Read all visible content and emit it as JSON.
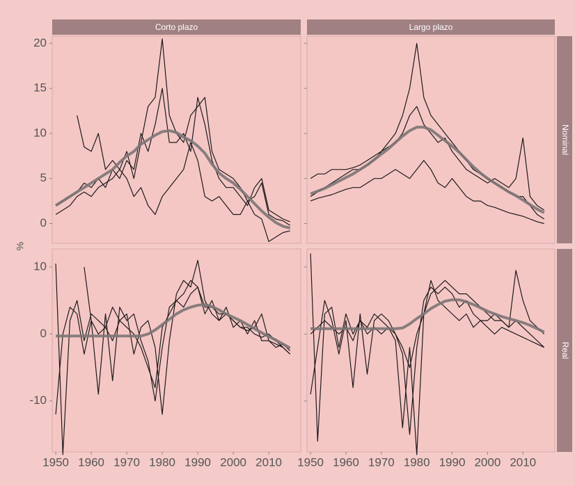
{
  "chart_data": {
    "type": "line",
    "ylabel": "%",
    "columns": [
      "Corto plazo",
      "Largo plazo"
    ],
    "rows": [
      "Nominal",
      "Real"
    ],
    "x": [
      1950,
      1952,
      1954,
      1956,
      1958,
      1960,
      1962,
      1964,
      1966,
      1968,
      1970,
      1972,
      1974,
      1976,
      1978,
      1980,
      1982,
      1984,
      1986,
      1988,
      1990,
      1992,
      1994,
      1996,
      1998,
      2000,
      2002,
      2004,
      2006,
      2008,
      2010,
      2012,
      2014,
      2016
    ],
    "xlim": [
      1949,
      2019
    ],
    "xticks": [
      1950,
      1960,
      1970,
      1980,
      1990,
      2000,
      2010
    ],
    "panels": [
      [
        {
          "ylim": [
            -2.2,
            20.8
          ],
          "yticks": [
            0,
            5,
            10,
            15,
            20
          ],
          "series": [
            {
              "color": "#1e1a1b",
              "values": [
                1,
                1.5,
                2,
                3,
                3.5,
                3,
                4,
                4.5,
                5,
                6,
                8,
                5,
                9,
                13,
                14,
                20.5,
                12,
                10,
                9,
                12,
                13,
                14,
                8,
                6,
                5.5,
                5,
                4,
                2.5,
                3,
                4.5,
                1,
                0.5,
                0.3,
                -0.2
              ]
            },
            {
              "color": "#1e1a1b",
              "values": [
                2,
                2.5,
                3,
                3.5,
                4.5,
                4,
                5,
                4,
                6,
                5,
                7,
                6,
                10,
                8,
                11,
                15,
                9,
                9,
                10,
                8,
                14,
                11,
                7,
                5,
                4,
                4,
                3,
                2,
                4,
                5,
                1.5,
                1,
                0.5,
                0.2
              ]
            },
            {
              "color": "#1e1a1b",
              "values": [
                null,
                null,
                null,
                12,
                8.5,
                8,
                10,
                6,
                7,
                6,
                5,
                3,
                4,
                2,
                1,
                3,
                4,
                5,
                6,
                9,
                7,
                3,
                2.5,
                3,
                2,
                1,
                1,
                2.5,
                1,
                0.5,
                -2,
                -1.5,
                -1,
                -0.8
              ]
            },
            {
              "color": "#7d7475",
              "values": [
                2,
                2.5,
                3,
                3.5,
                4,
                4.5,
                5,
                5.5,
                6,
                6.8,
                7.5,
                8,
                8.8,
                9.3,
                9.8,
                10.2,
                10.3,
                10.1,
                9.6,
                9.2,
                8.6,
                7.8,
                6.6,
                5.6,
                5,
                4.5,
                3.8,
                3,
                2.2,
                1.4,
                0.7,
                0.1,
                -0.3,
                -0.5
              ]
            }
          ]
        },
        {
          "ylim": [
            -2.2,
            20.8
          ],
          "yticks": [
            0,
            5,
            10,
            15,
            20
          ],
          "series": [
            {
              "color": "#1e1a1b",
              "values": [
                3,
                3.5,
                4,
                4.5,
                5,
                5.5,
                6,
                6,
                6.5,
                7,
                8,
                9,
                10,
                12,
                15,
                20,
                14,
                12,
                11,
                10,
                9,
                8,
                7,
                6,
                5.5,
                5,
                4.5,
                4,
                3.5,
                3,
                3,
                2,
                1,
                0.5
              ]
            },
            {
              "color": "#1e1a1b",
              "values": [
                5,
                5.5,
                5.5,
                6,
                6,
                6,
                6.2,
                6.5,
                7,
                7.5,
                8,
                8.5,
                9,
                10,
                12,
                13,
                11,
                10,
                9,
                9.5,
                8,
                7,
                6,
                5.5,
                5,
                4.5,
                5,
                4.5,
                4,
                5,
                9.5,
                3,
                2,
                1.5
              ]
            },
            {
              "color": "#1e1a1b",
              "values": [
                2.5,
                2.8,
                3,
                3.2,
                3.5,
                3.8,
                4,
                4,
                4.5,
                5,
                5,
                5.5,
                6,
                5.5,
                5,
                6,
                7,
                6,
                4.5,
                4,
                5,
                4,
                3,
                2.5,
                2.5,
                2,
                1.8,
                1.5,
                1.2,
                1,
                0.8,
                0.5,
                0.2,
                0
              ]
            },
            {
              "color": "#7d7475",
              "values": [
                3.3,
                3.6,
                3.9,
                4.3,
                4.7,
                5.1,
                5.5,
                6,
                6.5,
                7.1,
                7.7,
                8.3,
                9,
                9.7,
                10.3,
                10.7,
                10.7,
                10.4,
                9.8,
                9.2,
                8.6,
                7.9,
                7.1,
                6.3,
                5.6,
                5,
                4.5,
                4,
                3.5,
                3.1,
                2.6,
                2.1,
                1.6,
                1.2
              ]
            }
          ]
        }
      ],
      [
        {
          "ylim": [
            -17.6,
            12.7
          ],
          "yticks": [
            -10,
            0,
            10
          ],
          "series": [
            {
              "color": "#1e1a1b",
              "values": [
                10.5,
                -18,
                2,
                5,
                -1,
                3,
                2,
                1,
                4,
                2,
                3,
                -3,
                1,
                2,
                -2,
                -12,
                -1,
                6,
                8,
                7,
                11,
                5,
                3,
                2,
                3,
                2,
                1,
                0.5,
                1,
                3,
                -1,
                -2,
                -1.5,
                -2.5
              ]
            },
            {
              "color": "#1e1a1b",
              "values": [
                -12,
                0,
                4,
                3,
                -3,
                2,
                -9,
                3,
                -7,
                4,
                2,
                3,
                -1,
                -4,
                -10,
                -2,
                4,
                5,
                6,
                8,
                7,
                4,
                4,
                3,
                3,
                2,
                1,
                1,
                0,
                -0.5,
                0,
                -1,
                -2,
                -3
              ]
            },
            {
              "color": "#1e1a1b",
              "values": [
                null,
                null,
                null,
                null,
                10,
                2,
                0,
                1,
                -1,
                2,
                1,
                0,
                -2,
                -5,
                -8,
                1,
                3,
                5,
                4,
                6,
                7,
                3,
                5,
                2,
                4,
                1,
                2,
                0,
                2,
                -1,
                -1,
                -1.5,
                -2,
                -3
              ]
            },
            {
              "color": "#7d7475",
              "values": [
                -0.3,
                -0.3,
                -0.3,
                -0.3,
                -0.3,
                -0.3,
                -0.3,
                -0.3,
                -0.3,
                -0.3,
                -0.3,
                -0.3,
                -0.3,
                0,
                0.6,
                1.4,
                2.2,
                3,
                3.6,
                4,
                4.3,
                4.4,
                4.1,
                3.6,
                3,
                2.5,
                2,
                1.4,
                0.8,
                0.2,
                -0.4,
                -0.9,
                -1.5,
                -2.1
              ]
            }
          ]
        },
        {
          "ylim": [
            -17.6,
            12.7
          ],
          "yticks": [
            -10,
            0,
            10
          ],
          "series": [
            {
              "color": "#1e1a1b",
              "values": [
                12,
                -16,
                3,
                4,
                -2,
                3,
                0,
                2,
                1,
                3,
                2,
                1,
                -1,
                -14,
                -2,
                -18,
                3,
                6,
                7,
                8,
                7,
                6,
                6,
                5,
                4,
                3,
                2,
                2,
                1,
                9.5,
                5,
                2,
                1,
                0
              ]
            },
            {
              "color": "#1e1a1b",
              "values": [
                -9,
                -2,
                5,
                2,
                -3,
                2,
                -8,
                3,
                -6,
                2,
                3,
                2,
                0,
                -3,
                -15,
                -2,
                5,
                7,
                6,
                7,
                6,
                4,
                5,
                3,
                2,
                2,
                3,
                2,
                1,
                2,
                1,
                0,
                -1,
                -2
              ]
            },
            {
              "color": "#1e1a1b",
              "values": [
                0,
                1,
                2,
                1,
                0,
                1,
                -1,
                2,
                0,
                1,
                0,
                1,
                0,
                -2,
                -5,
                0,
                3,
                8,
                5,
                4,
                3,
                2,
                3,
                1,
                2,
                1,
                0,
                1,
                0.5,
                0,
                -0.5,
                -1,
                -1.5,
                -2
              ]
            },
            {
              "color": "#7d7475",
              "values": [
                0.8,
                0.8,
                0.8,
                0.8,
                0.8,
                0.8,
                0.8,
                0.8,
                0.8,
                0.8,
                0.8,
                0.8,
                0.8,
                0.9,
                1.5,
                2.3,
                3,
                3.8,
                4.4,
                4.9,
                5.1,
                5.1,
                4.8,
                4.4,
                3.9,
                3.4,
                3,
                2.6,
                2.3,
                2,
                1.7,
                1.3,
                0.8,
                0.3
              ]
            }
          ]
        }
      ]
    ]
  }
}
